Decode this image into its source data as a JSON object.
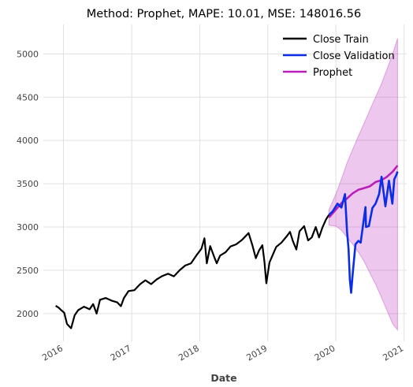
{
  "chart_data": {
    "type": "line",
    "title": "Method: Prophet, MAPE: 10.01, MSE: 148016.56",
    "xlabel": "Date",
    "ylabel": "",
    "x_ticks": [
      "2016",
      "2017",
      "2018",
      "2019",
      "2020",
      "2021"
    ],
    "y_ticks": [
      2000,
      2500,
      3000,
      3500,
      4000,
      4500,
      5000
    ],
    "xlim": [
      "2015-09-15",
      "2021-01-15"
    ],
    "ylim": [
      1680,
      5340
    ],
    "grid": true,
    "legend_position": "top-right",
    "series": [
      {
        "name": "Close Train",
        "color": "#000000",
        "points": [
          [
            "2015-11-20",
            2090
          ],
          [
            "2015-12-05",
            2070
          ],
          [
            "2015-12-20",
            2040
          ],
          [
            "2016-01-05",
            2010
          ],
          [
            "2016-01-20",
            1880
          ],
          [
            "2016-02-11",
            1830
          ],
          [
            "2016-03-01",
            1980
          ],
          [
            "2016-03-20",
            2040
          ],
          [
            "2016-04-20",
            2080
          ],
          [
            "2016-05-20",
            2050
          ],
          [
            "2016-06-08",
            2110
          ],
          [
            "2016-06-27",
            2000
          ],
          [
            "2016-07-15",
            2160
          ],
          [
            "2016-08-15",
            2180
          ],
          [
            "2016-09-15",
            2150
          ],
          [
            "2016-10-15",
            2130
          ],
          [
            "2016-11-04",
            2085
          ],
          [
            "2016-11-20",
            2180
          ],
          [
            "2016-12-15",
            2260
          ],
          [
            "2017-01-15",
            2270
          ],
          [
            "2017-02-15",
            2340
          ],
          [
            "2017-03-15",
            2385
          ],
          [
            "2017-04-15",
            2340
          ],
          [
            "2017-05-15",
            2395
          ],
          [
            "2017-06-15",
            2435
          ],
          [
            "2017-07-15",
            2460
          ],
          [
            "2017-08-15",
            2430
          ],
          [
            "2017-09-15",
            2500
          ],
          [
            "2017-10-15",
            2555
          ],
          [
            "2017-11-15",
            2580
          ],
          [
            "2017-12-15",
            2675
          ],
          [
            "2018-01-10",
            2750
          ],
          [
            "2018-01-26",
            2870
          ],
          [
            "2018-02-08",
            2580
          ],
          [
            "2018-02-26",
            2780
          ],
          [
            "2018-03-22",
            2640
          ],
          [
            "2018-04-02",
            2580
          ],
          [
            "2018-04-20",
            2670
          ],
          [
            "2018-05-20",
            2710
          ],
          [
            "2018-06-15",
            2775
          ],
          [
            "2018-07-15",
            2800
          ],
          [
            "2018-08-15",
            2850
          ],
          [
            "2018-09-20",
            2930
          ],
          [
            "2018-10-10",
            2790
          ],
          [
            "2018-10-29",
            2640
          ],
          [
            "2018-11-15",
            2730
          ],
          [
            "2018-12-03",
            2790
          ],
          [
            "2018-12-14",
            2600
          ],
          [
            "2018-12-24",
            2350
          ],
          [
            "2019-01-10",
            2590
          ],
          [
            "2019-02-15",
            2770
          ],
          [
            "2019-03-15",
            2820
          ],
          [
            "2019-04-15",
            2900
          ],
          [
            "2019-04-30",
            2945
          ],
          [
            "2019-05-15",
            2840
          ],
          [
            "2019-06-03",
            2740
          ],
          [
            "2019-06-20",
            2950
          ],
          [
            "2019-07-15",
            3010
          ],
          [
            "2019-08-05",
            2845
          ],
          [
            "2019-08-25",
            2880
          ],
          [
            "2019-09-15",
            3000
          ],
          [
            "2019-10-03",
            2880
          ],
          [
            "2019-10-20",
            2990
          ],
          [
            "2019-11-10",
            3090
          ],
          [
            "2019-11-25",
            3140
          ]
        ]
      },
      {
        "name": "Close Validation",
        "color": "#0a2de8",
        "points": [
          [
            "2019-11-25",
            3140
          ],
          [
            "2019-12-15",
            3180
          ],
          [
            "2020-01-10",
            3270
          ],
          [
            "2020-01-31",
            3225
          ],
          [
            "2020-02-19",
            3380
          ],
          [
            "2020-03-01",
            2950
          ],
          [
            "2020-03-09",
            2750
          ],
          [
            "2020-03-16",
            2390
          ],
          [
            "2020-03-23",
            2240
          ],
          [
            "2020-04-01",
            2470
          ],
          [
            "2020-04-15",
            2800
          ],
          [
            "2020-05-01",
            2840
          ],
          [
            "2020-05-13",
            2820
          ],
          [
            "2020-06-08",
            3230
          ],
          [
            "2020-06-11",
            3000
          ],
          [
            "2020-06-26",
            3010
          ],
          [
            "2020-07-15",
            3220
          ],
          [
            "2020-08-01",
            3270
          ],
          [
            "2020-08-20",
            3380
          ],
          [
            "2020-09-02",
            3580
          ],
          [
            "2020-09-23",
            3240
          ],
          [
            "2020-10-12",
            3535
          ],
          [
            "2020-10-30",
            3270
          ],
          [
            "2020-11-09",
            3550
          ],
          [
            "2020-11-20",
            3600
          ],
          [
            "2020-11-27",
            3640
          ]
        ]
      },
      {
        "name": "Prophet",
        "color": "#b81fb8",
        "points": [
          [
            "2019-11-25",
            3110
          ],
          [
            "2020-01-01",
            3200
          ],
          [
            "2020-02-01",
            3280
          ],
          [
            "2020-03-01",
            3330
          ],
          [
            "2020-04-01",
            3390
          ],
          [
            "2020-05-01",
            3430
          ],
          [
            "2020-06-01",
            3450
          ],
          [
            "2020-07-01",
            3470
          ],
          [
            "2020-08-01",
            3520
          ],
          [
            "2020-09-01",
            3540
          ],
          [
            "2020-10-01",
            3580
          ],
          [
            "2020-11-01",
            3640
          ],
          [
            "2020-11-27",
            3710
          ]
        ],
        "band_upper": [
          [
            "2019-11-25",
            3200
          ],
          [
            "2020-01-01",
            3380
          ],
          [
            "2020-02-01",
            3560
          ],
          [
            "2020-03-01",
            3740
          ],
          [
            "2020-04-01",
            3900
          ],
          [
            "2020-05-01",
            4050
          ],
          [
            "2020-06-01",
            4200
          ],
          [
            "2020-07-01",
            4350
          ],
          [
            "2020-08-01",
            4500
          ],
          [
            "2020-09-01",
            4650
          ],
          [
            "2020-10-01",
            4820
          ],
          [
            "2020-11-01",
            5000
          ],
          [
            "2020-11-27",
            5180
          ]
        ],
        "band_lower": [
          [
            "2019-11-25",
            3020
          ],
          [
            "2020-01-01",
            3010
          ],
          [
            "2020-02-01",
            2960
          ],
          [
            "2020-03-01",
            2880
          ],
          [
            "2020-04-01",
            2800
          ],
          [
            "2020-05-01",
            2710
          ],
          [
            "2020-06-01",
            2600
          ],
          [
            "2020-07-01",
            2470
          ],
          [
            "2020-08-01",
            2340
          ],
          [
            "2020-09-01",
            2190
          ],
          [
            "2020-10-01",
            2040
          ],
          [
            "2020-11-01",
            1880
          ],
          [
            "2020-11-27",
            1810
          ]
        ]
      }
    ]
  }
}
